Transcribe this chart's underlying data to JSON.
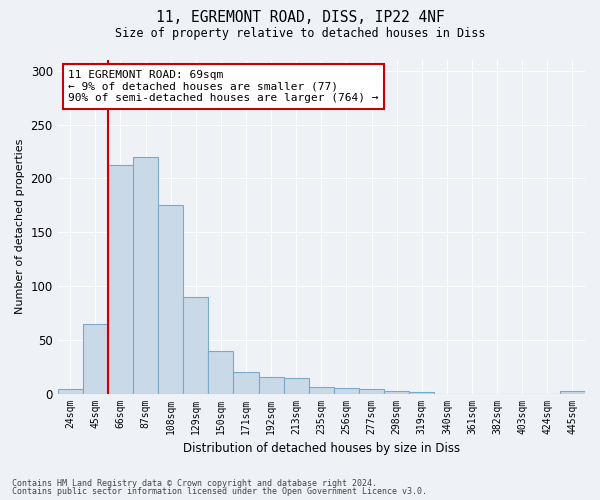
{
  "title1": "11, EGREMONT ROAD, DISS, IP22 4NF",
  "title2": "Size of property relative to detached houses in Diss",
  "xlabel": "Distribution of detached houses by size in Diss",
  "ylabel": "Number of detached properties",
  "categories": [
    "24sqm",
    "45sqm",
    "66sqm",
    "87sqm",
    "108sqm",
    "129sqm",
    "150sqm",
    "171sqm",
    "192sqm",
    "213sqm",
    "235sqm",
    "256sqm",
    "277sqm",
    "298sqm",
    "319sqm",
    "340sqm",
    "361sqm",
    "382sqm",
    "403sqm",
    "424sqm",
    "445sqm"
  ],
  "values": [
    4,
    65,
    212,
    220,
    175,
    90,
    40,
    20,
    15,
    14,
    6,
    5,
    4,
    2,
    1,
    0,
    0,
    0,
    0,
    0,
    2
  ],
  "bar_color": "#c9d9e8",
  "bar_edge_color": "#7aaac8",
  "vline_x": 1.5,
  "vline_color": "#cc0000",
  "annotation_line1": "11 EGREMONT ROAD: 69sqm",
  "annotation_line2": "← 9% of detached houses are smaller (77)",
  "annotation_line3": "90% of semi-detached houses are larger (764) →",
  "annotation_box_color": "#ffffff",
  "annotation_box_edge": "#cc0000",
  "footnote1": "Contains HM Land Registry data © Crown copyright and database right 2024.",
  "footnote2": "Contains public sector information licensed under the Open Government Licence v3.0.",
  "background_color": "#eef2f7",
  "plot_bg_color": "#eef2f7",
  "ylim": [
    0,
    310
  ],
  "yticks": [
    0,
    50,
    100,
    150,
    200,
    250,
    300
  ]
}
